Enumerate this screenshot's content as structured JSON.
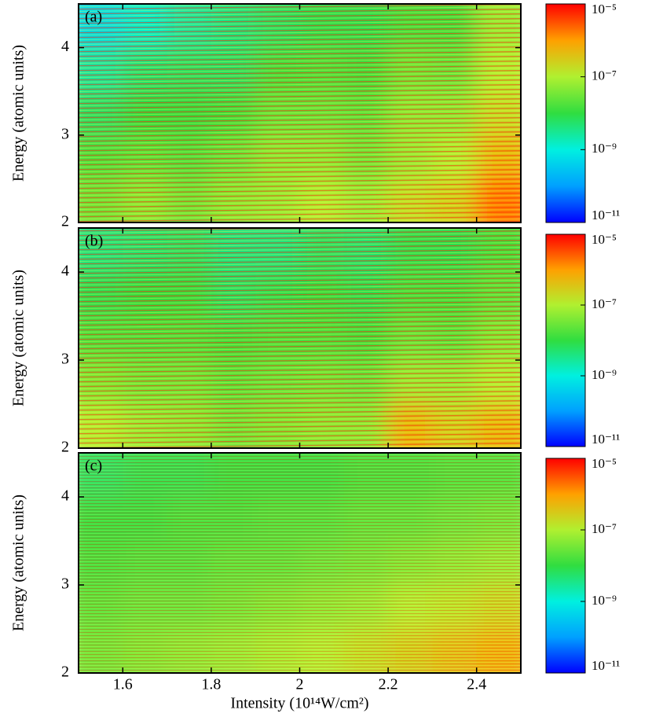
{
  "chart_data": [
    {
      "type": "heatmap",
      "panel_label": "(a)",
      "ylabel": "Energy (atomic units)",
      "xlim": [
        1.5,
        2.5
      ],
      "xticks": [
        1.6,
        1.8,
        2.0,
        2.2,
        2.4
      ],
      "show_xtick_labels": false,
      "ylim": [
        2,
        4.5
      ],
      "yticks": [
        2,
        3,
        4
      ],
      "zlim": [
        1e-11,
        1e-05
      ],
      "zlog": true,
      "zticks": [
        {
          "value": 1e-05,
          "label": "10⁻⁵"
        },
        {
          "value": 1e-07,
          "label": "10⁻⁷"
        },
        {
          "value": 1e-09,
          "label": "10⁻⁹"
        },
        {
          "value": 1e-11,
          "label": "10⁻¹¹"
        }
      ],
      "colors": [
        "#0000ff",
        "#00a0ff",
        "#00f0e0",
        "#30dd40",
        "#b0f030",
        "#ffa000",
        "#ff0000"
      ],
      "x": [
        1.55,
        1.65,
        1.75,
        1.85,
        1.95,
        2.05,
        2.15,
        2.25,
        2.35,
        2.45
      ],
      "y": [
        2.25,
        2.75,
        3.25,
        3.75,
        4.25
      ],
      "z": [
        [
          3e-08,
          5e-08,
          3e-08,
          5e-08,
          6e-08,
          1e-07,
          6e-08,
          1.6e-07,
          2.5e-07,
          1.6e-06
        ],
        [
          1.6e-08,
          2e-08,
          1.6e-08,
          2.5e-08,
          5e-08,
          5e-08,
          3e-08,
          6e-08,
          1e-07,
          5e-07
        ],
        [
          6e-09,
          1e-08,
          1e-08,
          1.3e-08,
          2.5e-08,
          2.5e-08,
          2e-08,
          5e-08,
          5e-08,
          1.6e-07
        ],
        [
          2.5e-09,
          5e-09,
          6e-09,
          6e-09,
          1.3e-08,
          1.6e-08,
          1.3e-08,
          3e-08,
          2.5e-08,
          1e-07
        ],
        [
          6e-10,
          1.3e-09,
          2.5e-09,
          4e-09,
          6e-09,
          8e-09,
          8e-09,
          1.3e-08,
          1.3e-08,
          6e-08
        ]
      ]
    },
    {
      "type": "heatmap",
      "panel_label": "(b)",
      "ylabel": "Energy (atomic units)",
      "xlim": [
        1.5,
        2.5
      ],
      "xticks": [
        1.6,
        1.8,
        2.0,
        2.2,
        2.4
      ],
      "show_xtick_labels": false,
      "ylim": [
        2,
        4.5
      ],
      "yticks": [
        2,
        3,
        4
      ],
      "zlim": [
        1e-11,
        1e-05
      ],
      "zlog": true,
      "zticks": [
        {
          "value": 1e-05,
          "label": "10⁻⁵"
        },
        {
          "value": 1e-07,
          "label": "10⁻⁷"
        },
        {
          "value": 1e-09,
          "label": "10⁻⁹"
        },
        {
          "value": 1e-11,
          "label": "10⁻¹¹"
        }
      ],
      "colors": [
        "#0000ff",
        "#00a0ff",
        "#00f0e0",
        "#30dd40",
        "#b0f030",
        "#ffa000",
        "#ff0000"
      ],
      "x": [
        1.55,
        1.65,
        1.75,
        1.85,
        1.95,
        2.05,
        2.15,
        2.25,
        2.35,
        2.45
      ],
      "y": [
        2.25,
        2.75,
        3.25,
        3.75,
        4.25
      ],
      "z": [
        [
          1e-07,
          6e-08,
          5e-08,
          3e-08,
          4e-08,
          5e-08,
          5e-08,
          5e-07,
          2.5e-07,
          5e-07
        ],
        [
          4e-08,
          3e-08,
          3e-08,
          2e-08,
          2.5e-08,
          3e-08,
          2.5e-08,
          6e-08,
          6e-08,
          1e-07
        ],
        [
          1.6e-08,
          1.6e-08,
          1.6e-08,
          1.3e-08,
          1.6e-08,
          1.6e-08,
          1.3e-08,
          2.5e-08,
          2e-08,
          4e-08
        ],
        [
          8e-09,
          1e-08,
          1e-08,
          6e-09,
          8e-09,
          1e-08,
          8e-09,
          1.3e-08,
          1.3e-08,
          2e-08
        ],
        [
          4e-09,
          5e-09,
          6e-09,
          4e-09,
          4e-09,
          6e-09,
          5e-09,
          8e-09,
          8e-09,
          1.3e-08
        ]
      ]
    },
    {
      "type": "heatmap",
      "panel_label": "(c)",
      "ylabel": "Energy (atomic units)",
      "xlabel": "Intensity (10¹⁴W/cm²)",
      "xlim": [
        1.5,
        2.5
      ],
      "xticks": [
        1.6,
        1.8,
        2.0,
        2.2,
        2.4
      ],
      "show_xtick_labels": true,
      "ylim": [
        2,
        4.5
      ],
      "yticks": [
        2,
        3,
        4
      ],
      "zlim": [
        1e-11,
        1e-05
      ],
      "zlog": true,
      "zticks": [
        {
          "value": 1e-05,
          "label": "10⁻⁵"
        },
        {
          "value": 1e-07,
          "label": "10⁻⁷"
        },
        {
          "value": 1e-09,
          "label": "10⁻⁹"
        },
        {
          "value": 1e-11,
          "label": "10⁻¹¹"
        }
      ],
      "colors": [
        "#0000ff",
        "#00a0ff",
        "#00f0e0",
        "#30dd40",
        "#b0f030",
        "#ffa000",
        "#ff0000"
      ],
      "x": [
        1.55,
        1.65,
        1.75,
        1.85,
        1.95,
        2.05,
        2.15,
        2.25,
        2.35,
        2.45
      ],
      "y": [
        2.25,
        2.75,
        3.25,
        3.75,
        4.25
      ],
      "z": [
        [
          3e-08,
          4e-08,
          5e-08,
          6e-08,
          8e-08,
          1e-07,
          1.6e-07,
          2.5e-07,
          4e-07,
          6e-07
        ],
        [
          2e-08,
          2.5e-08,
          2.5e-08,
          3e-08,
          4e-08,
          5e-08,
          6e-08,
          1e-07,
          1.3e-07,
          2e-07
        ],
        [
          1.3e-08,
          1.6e-08,
          1.6e-08,
          2e-08,
          2e-08,
          2.5e-08,
          3e-08,
          4e-08,
          5e-08,
          6e-08
        ],
        [
          1e-08,
          1e-08,
          1.3e-08,
          1.3e-08,
          1.6e-08,
          1.6e-08,
          2e-08,
          2e-08,
          2.5e-08,
          3e-08
        ],
        [
          6e-09,
          8e-09,
          8e-09,
          1e-08,
          1e-08,
          1e-08,
          1.3e-08,
          1.3e-08,
          1.6e-08,
          1.6e-08
        ]
      ]
    }
  ]
}
